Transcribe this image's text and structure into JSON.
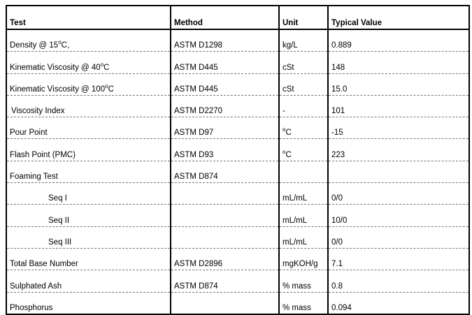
{
  "table": {
    "headers": [
      "Test",
      "Method",
      "Unit",
      "Typical Value"
    ],
    "rows": [
      {
        "test": "Density @ 15",
        "test_sup": "o",
        "test_after": "C,",
        "method": "ASTM D1298",
        "unit": "kg/L",
        "unit_sup": "",
        "value": "0.889",
        "indent": 0
      },
      {
        "test": "Kinematic Viscosity @ 40",
        "test_sup": "o",
        "test_after": "C",
        "method": "ASTM D445",
        "unit": "cSt",
        "unit_sup": "",
        "value": "148",
        "indent": 0
      },
      {
        "test": "Kinematic Viscosity @ 100",
        "test_sup": "o",
        "test_after": "C",
        "method": "ASTM D445",
        "unit": "cSt",
        "unit_sup": "",
        "value": "15.0",
        "indent": 0
      },
      {
        "test": " Viscosity Index",
        "test_sup": "",
        "test_after": "",
        "method": "ASTM D2270",
        "unit": "-",
        "unit_sup": "",
        "value": "101",
        "indent": 1
      },
      {
        "test": "Pour Point",
        "test_sup": "",
        "test_after": "",
        "method": "ASTM D97",
        "unit": "C",
        "unit_sup": "o",
        "value": "-15",
        "indent": 0
      },
      {
        "test": "Flash Point (PMC)",
        "test_sup": "",
        "test_after": "",
        "method": "ASTM D93",
        "unit": "C",
        "unit_sup": "o",
        "value": "223",
        "indent": 0
      },
      {
        "test": "Foaming Test",
        "test_sup": "",
        "test_after": "",
        "method": "ASTM D874",
        "unit": "",
        "unit_sup": "",
        "value": "",
        "indent": 0
      },
      {
        "test": "Seq I",
        "test_sup": "",
        "test_after": "",
        "method": "",
        "unit": "mL/mL",
        "unit_sup": "",
        "value": "0/0",
        "indent": 2
      },
      {
        "test": "Seq II",
        "test_sup": "",
        "test_after": "",
        "method": "",
        "unit": "mL/mL",
        "unit_sup": "",
        "value": "10/0",
        "indent": 2
      },
      {
        "test": "Seq III",
        "test_sup": "",
        "test_after": "",
        "method": "",
        "unit": "mL/mL",
        "unit_sup": "",
        "value": "0/0",
        "indent": 2
      },
      {
        "test": "Total Base Number",
        "test_sup": "",
        "test_after": "",
        "method": "ASTM D2896",
        "unit": "mgKOH/g",
        "unit_sup": "",
        "value": "7.1",
        "indent": 0
      },
      {
        "test": "Sulphated Ash",
        "test_sup": "",
        "test_after": "",
        "method": "ASTM D874",
        "unit": "% mass",
        "unit_sup": "",
        "value": "0.8",
        "indent": 0
      },
      {
        "test": "Phosphorus",
        "test_sup": "",
        "test_after": "",
        "method": "",
        "unit": "% mass",
        "unit_sup": "",
        "value": "0.094",
        "indent": 0
      }
    ]
  }
}
